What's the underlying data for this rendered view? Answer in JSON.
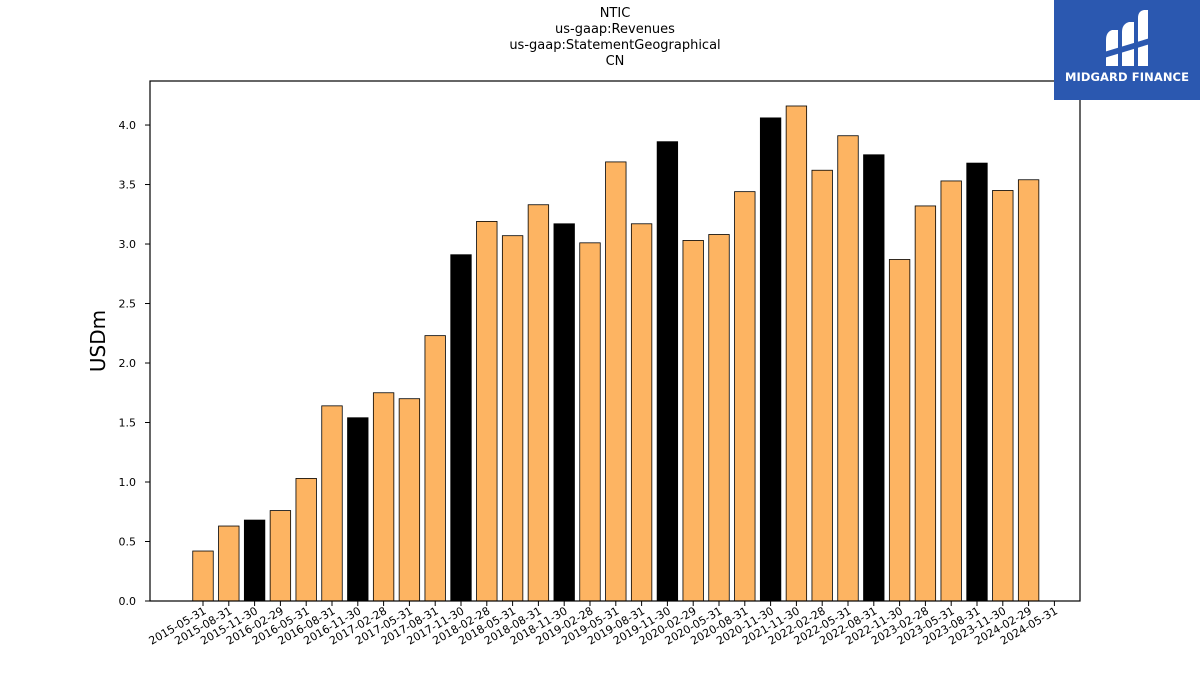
{
  "title_lines": [
    "NTIC",
    "us-gaap:Revenues",
    "us-gaap:StatementGeographical",
    "CN"
  ],
  "logo": {
    "text": "MIDGARD FINANCE",
    "background": "#2b58b0"
  },
  "colors": {
    "bar_default": "#fdb462",
    "bar_highlight": "#000000",
    "bar_edge": "#000000"
  },
  "chart_data": {
    "type": "bar",
    "title": "NTIC\nus-gaap:Revenues\nus-gaap:StatementGeographical\nCN",
    "xlabel": "",
    "ylabel": "USDm",
    "ylim": [
      0,
      4.37
    ],
    "yticks": [
      0.0,
      0.5,
      1.0,
      1.5,
      2.0,
      2.5,
      3.0,
      3.5,
      4.0
    ],
    "ytick_labels": [
      "0.0",
      "0.5",
      "1.0",
      "1.5",
      "2.0",
      "2.5",
      "3.0",
      "3.5",
      "4.0"
    ],
    "grid": false,
    "categories": [
      "2015-05-31",
      "2015-08-31",
      "2015-11-30",
      "2016-02-29",
      "2016-05-31",
      "2016-08-31",
      "2016-11-30",
      "2017-02-28",
      "2017-05-31",
      "2017-08-31",
      "2017-11-30",
      "2018-02-28",
      "2018-05-31",
      "2018-08-31",
      "2018-11-30",
      "2019-02-28",
      "2019-05-31",
      "2019-08-31",
      "2019-11-30",
      "2020-02-29",
      "2020-05-31",
      "2020-08-31",
      "2020-11-30",
      "2021-11-30",
      "2022-02-28",
      "2022-05-31",
      "2022-08-31",
      "2022-11-30",
      "2023-02-28",
      "2023-05-31",
      "2023-08-31",
      "2023-11-30",
      "2024-02-29",
      "2024-05-31"
    ],
    "values": [
      0.42,
      0.63,
      0.68,
      0.76,
      1.03,
      1.64,
      1.54,
      1.75,
      1.7,
      2.23,
      2.91,
      3.19,
      3.07,
      3.33,
      3.17,
      3.01,
      3.69,
      3.17,
      3.86,
      3.03,
      3.08,
      3.44,
      4.06,
      4.16,
      3.62,
      3.91,
      3.75,
      2.87,
      3.32,
      3.53,
      3.68,
      3.45,
      3.54,
      0
    ],
    "highlight": [
      false,
      false,
      true,
      false,
      false,
      false,
      true,
      false,
      false,
      false,
      true,
      false,
      false,
      false,
      true,
      false,
      false,
      false,
      true,
      false,
      false,
      false,
      true,
      false,
      false,
      false,
      true,
      false,
      false,
      false,
      true,
      false,
      false,
      false
    ]
  }
}
